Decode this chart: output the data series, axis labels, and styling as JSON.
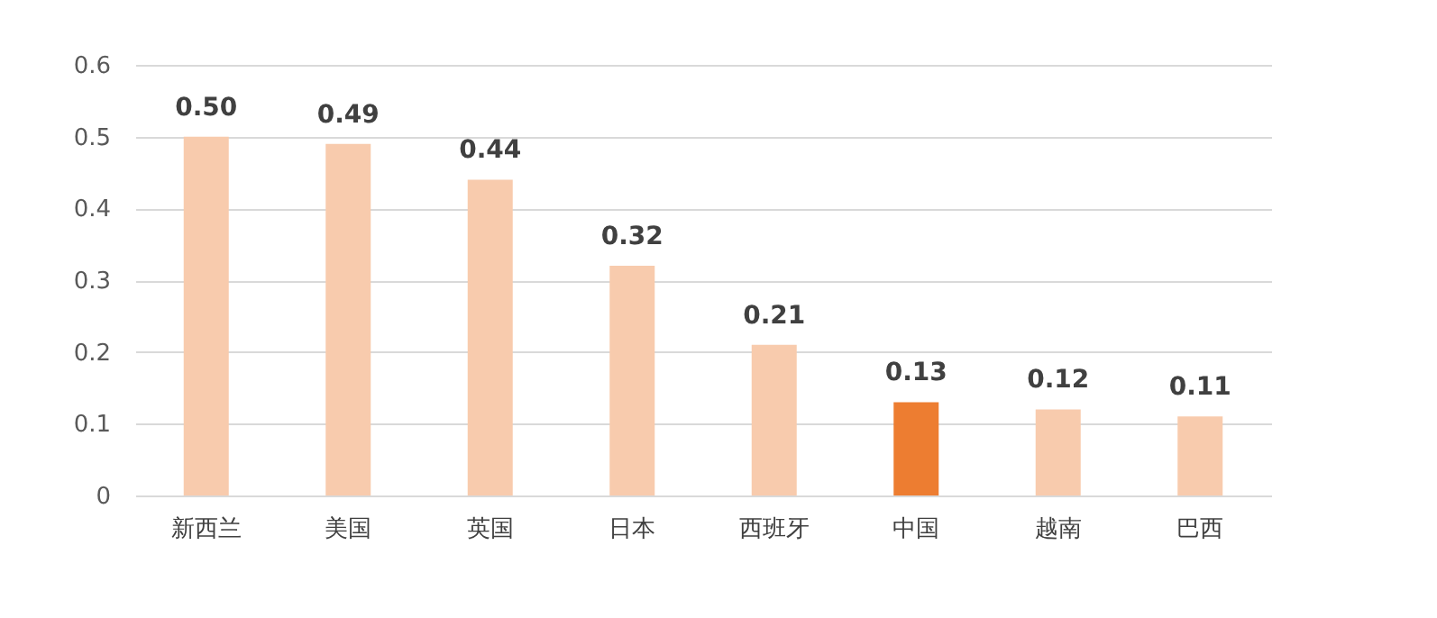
{
  "chart_data": {
    "type": "bar",
    "categories": [
      "新西兰",
      "美国",
      "英国",
      "日本",
      "西班牙",
      "中国",
      "越南",
      "巴西"
    ],
    "values": [
      0.5,
      0.49,
      0.44,
      0.32,
      0.21,
      0.13,
      0.12,
      0.11
    ],
    "value_labels": [
      "0.50",
      "0.49",
      "0.44",
      "0.32",
      "0.21",
      "0.13",
      "0.12",
      "0.11"
    ],
    "colors": [
      "#f8cbad",
      "#f8cbad",
      "#f8cbad",
      "#f8cbad",
      "#f8cbad",
      "#ed7d31",
      "#f8cbad",
      "#f8cbad"
    ],
    "ylim": [
      0,
      0.6
    ],
    "yticks": [
      0,
      0.1,
      0.2,
      0.3,
      0.4,
      0.5,
      0.6
    ],
    "grid": "y"
  }
}
